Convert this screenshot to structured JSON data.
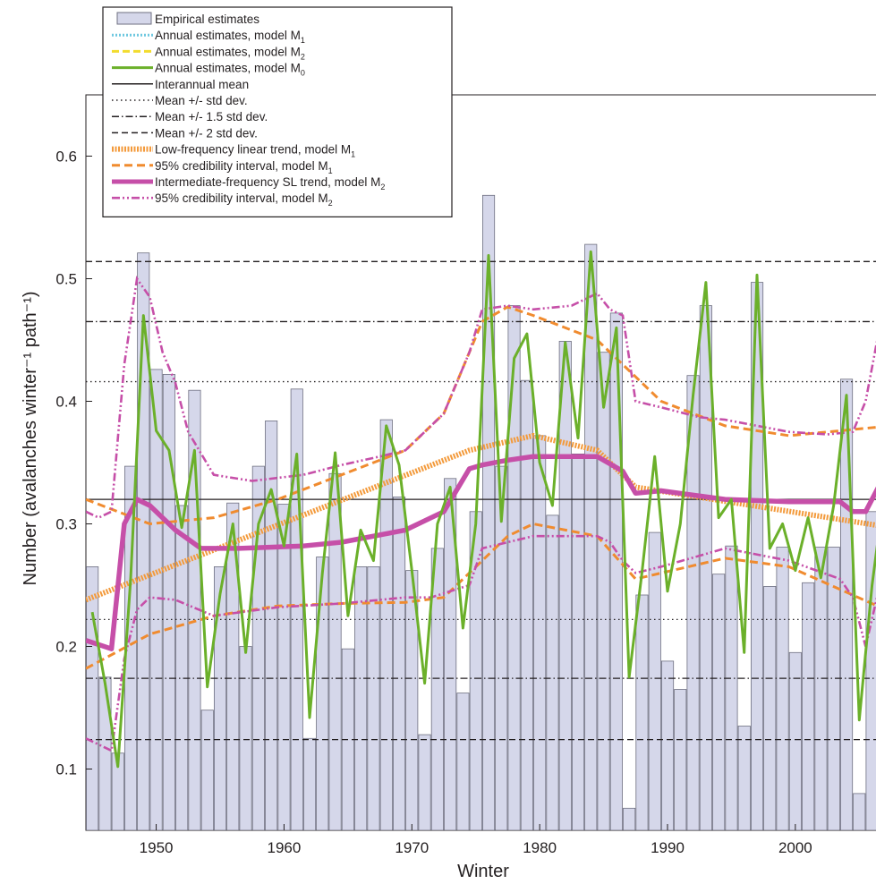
{
  "chart_data": {
    "type": "bar",
    "xlabel": "Winter",
    "ylabel": "Number (avalanches winter⁻¹ path⁻¹)",
    "xlim": [
      1945,
      2008
    ],
    "ylim": [
      0.05,
      0.65
    ],
    "xticks": [
      1950,
      1960,
      1970,
      1980,
      1990,
      2000
    ],
    "yticks": [
      0.1,
      0.2,
      0.3,
      0.4,
      0.5,
      0.6
    ],
    "ytick_labels": [
      "0.1",
      "0.2",
      "0.3",
      "0.4",
      "0.5",
      "0.6"
    ],
    "legend_position": "top-left",
    "colors": {
      "bars_fill": "#d5d7ea",
      "bars_stroke": "#6e6f80",
      "model_m1": "#6fc8e0",
      "model_m2": "#f2dc2e",
      "model_m0": "#6bb02a",
      "mean_lines": "#231f20",
      "trend_m1": "#f39a3b",
      "ci_m1": "#f08b2f",
      "trend_m2": "#c64fa8",
      "ci_m2": "#c64fa8"
    },
    "interannual_mean": 0.32,
    "std_lines": {
      "plus_minus_1": [
        0.222,
        0.416
      ],
      "plus_minus_1_5": [
        0.174,
        0.465
      ],
      "plus_minus_2": [
        0.124,
        0.514
      ]
    },
    "legend": [
      {
        "key": "empirical",
        "text": "Empirical estimates",
        "sub": ""
      },
      {
        "key": "m1_annual",
        "text": "Annual estimates, model M",
        "sub": "1"
      },
      {
        "key": "m2_annual",
        "text": "Annual estimates, model M",
        "sub": "2"
      },
      {
        "key": "m0_annual",
        "text": "Annual estimates, model M",
        "sub": "0"
      },
      {
        "key": "mean",
        "text": "Interannual mean",
        "sub": ""
      },
      {
        "key": "std1",
        "text": "Mean +/- std dev.",
        "sub": ""
      },
      {
        "key": "std15",
        "text": "Mean +/- 1.5 std dev.",
        "sub": ""
      },
      {
        "key": "std2",
        "text": "Mean +/- 2 std dev.",
        "sub": ""
      },
      {
        "key": "trend_m1",
        "text": "Low-frequency linear trend, model M",
        "sub": "1"
      },
      {
        "key": "ci_m1",
        "text": "95% credibility interval, model M",
        "sub": "1"
      },
      {
        "key": "trend_m2",
        "text": "Intermediate-frequency SL trend, model M",
        "sub": "2"
      },
      {
        "key": "ci_m2",
        "text": "95% credibility interval, model M",
        "sub": "2"
      }
    ],
    "empirical": {
      "x": [
        1945,
        1946,
        1947,
        1948,
        1949,
        1950,
        1951,
        1952,
        1953,
        1954,
        1955,
        1956,
        1957,
        1958,
        1959,
        1960,
        1961,
        1962,
        1963,
        1964,
        1965,
        1966,
        1967,
        1968,
        1969,
        1970,
        1971,
        1972,
        1973,
        1974,
        1975,
        1976,
        1977,
        1978,
        1979,
        1980,
        1981,
        1982,
        1983,
        1984,
        1985,
        1986,
        1987,
        1988,
        1989,
        1990,
        1991,
        1992,
        1993,
        1994,
        1995,
        1996,
        1997,
        1998,
        1999,
        2000,
        2001,
        2002,
        2003,
        2004,
        2005,
        2006,
        2007
      ],
      "y": [
        0.265,
        0.175,
        0.113,
        0.347,
        0.521,
        0.426,
        0.422,
        0.315,
        0.409,
        0.148,
        0.265,
        0.317,
        0.2,
        0.347,
        0.384,
        0.316,
        0.41,
        0.125,
        0.273,
        0.341,
        0.198,
        0.265,
        0.265,
        0.385,
        0.322,
        0.262,
        0.128,
        0.28,
        0.337,
        0.162,
        0.31,
        0.568,
        0.347,
        0.478,
        0.417,
        0.372,
        0.307,
        0.449,
        0.357,
        0.528,
        0.44,
        0.472,
        0.068,
        0.242,
        0.293,
        0.188,
        0.165,
        0.421,
        0.478,
        0.259,
        0.282,
        0.135,
        0.497,
        0.249,
        0.281,
        0.195,
        0.252,
        0.281,
        0.281,
        0.418,
        0.08,
        0.31,
        0.423
      ]
    },
    "annual_m0": {
      "x": [
        1945,
        1946,
        1947,
        1948,
        1949,
        1950,
        1951,
        1952,
        1953,
        1954,
        1955,
        1956,
        1957,
        1958,
        1959,
        1960,
        1961,
        1962,
        1963,
        1964,
        1965,
        1966,
        1967,
        1968,
        1969,
        1970,
        1971,
        1972,
        1973,
        1974,
        1975,
        1976,
        1977,
        1978,
        1979,
        1980,
        1981,
        1982,
        1983,
        1984,
        1985,
        1986,
        1987,
        1988,
        1989,
        1990,
        1991,
        1992,
        1993,
        1994,
        1995,
        1996,
        1997,
        1998,
        1999,
        2000,
        2001,
        2002,
        2003,
        2004,
        2005,
        2006,
        2007
      ],
      "y": [
        0.228,
        0.17,
        0.102,
        0.255,
        0.47,
        0.376,
        0.36,
        0.297,
        0.36,
        0.167,
        0.243,
        0.3,
        0.195,
        0.3,
        0.328,
        0.282,
        0.357,
        0.142,
        0.26,
        0.358,
        0.225,
        0.295,
        0.27,
        0.38,
        0.348,
        0.262,
        0.17,
        0.3,
        0.33,
        0.215,
        0.3,
        0.519,
        0.302,
        0.435,
        0.455,
        0.35,
        0.315,
        0.448,
        0.37,
        0.522,
        0.395,
        0.46,
        0.175,
        0.26,
        0.355,
        0.245,
        0.3,
        0.405,
        0.497,
        0.305,
        0.32,
        0.195,
        0.503,
        0.28,
        0.3,
        0.262,
        0.305,
        0.256,
        0.315,
        0.405,
        0.14,
        0.25,
        0.33
      ]
    },
    "trend_m1": {
      "x": [
        1945,
        2008
      ],
      "y": [
        0.238,
        0.297
      ],
      "x2": [
        1945,
        1975,
        1980,
        1985,
        1988,
        2008
      ],
      "y2": [
        0.238,
        0.36,
        0.372,
        0.36,
        0.33,
        0.297
      ]
    },
    "ci_m1_upper": {
      "x": [
        1945,
        1950,
        1955,
        1960,
        1965,
        1970,
        1973,
        1976,
        1978,
        1980,
        1985,
        1990,
        1995,
        2000,
        2008
      ],
      "y": [
        0.32,
        0.3,
        0.305,
        0.32,
        0.34,
        0.36,
        0.39,
        0.465,
        0.477,
        0.47,
        0.45,
        0.4,
        0.38,
        0.372,
        0.38
      ]
    },
    "ci_m1_lower": {
      "x": [
        1945,
        1950,
        1955,
        1960,
        1965,
        1970,
        1973,
        1976,
        1978,
        1980,
        1985,
        1988,
        1995,
        2000,
        2008
      ],
      "y": [
        0.182,
        0.21,
        0.225,
        0.233,
        0.235,
        0.236,
        0.24,
        0.27,
        0.29,
        0.3,
        0.29,
        0.255,
        0.272,
        0.265,
        0.228
      ]
    },
    "trend_m2": {
      "x": [
        1945,
        1947,
        1948,
        1949,
        1950,
        1952,
        1954,
        1957,
        1962,
        1965,
        1970,
        1973,
        1975,
        1976,
        1978,
        1980,
        1985,
        1987,
        1988,
        1990,
        1995,
        2000,
        2004,
        2005,
        2006,
        2007
      ],
      "y": [
        0.205,
        0.198,
        0.3,
        0.32,
        0.315,
        0.295,
        0.28,
        0.28,
        0.282,
        0.285,
        0.295,
        0.31,
        0.345,
        0.348,
        0.352,
        0.355,
        0.355,
        0.343,
        0.325,
        0.327,
        0.32,
        0.318,
        0.318,
        0.31,
        0.31,
        0.33
      ]
    },
    "ci_m2_upper": {
      "x": [
        1945,
        1946,
        1947,
        1948,
        1949,
        1950,
        1951,
        1952,
        1953,
        1955,
        1958,
        1962,
        1965,
        1968,
        1970,
        1973,
        1975,
        1976,
        1978,
        1980,
        1983,
        1985,
        1986,
        1987,
        1988,
        1990,
        1993,
        1995,
        2000,
        2003,
        2005,
        2006,
        2007,
        2008
      ],
      "y": [
        0.31,
        0.305,
        0.31,
        0.43,
        0.5,
        0.485,
        0.44,
        0.415,
        0.375,
        0.34,
        0.335,
        0.34,
        0.348,
        0.355,
        0.36,
        0.39,
        0.44,
        0.475,
        0.478,
        0.475,
        0.478,
        0.488,
        0.475,
        0.47,
        0.4,
        0.395,
        0.387,
        0.385,
        0.375,
        0.373,
        0.375,
        0.4,
        0.455,
        0.515
      ]
    },
    "ci_m2_lower": {
      "x": [
        1945,
        1947,
        1948,
        1949,
        1950,
        1952,
        1955,
        1960,
        1965,
        1970,
        1972,
        1975,
        1976,
        1978,
        1980,
        1985,
        1986,
        1987,
        1988,
        1990,
        1995,
        2000,
        2004,
        2005,
        2006,
        2007,
        2008
      ],
      "y": [
        0.125,
        0.115,
        0.19,
        0.23,
        0.24,
        0.238,
        0.225,
        0.232,
        0.235,
        0.24,
        0.24,
        0.25,
        0.28,
        0.285,
        0.29,
        0.29,
        0.285,
        0.27,
        0.26,
        0.265,
        0.28,
        0.27,
        0.255,
        0.24,
        0.2,
        0.245,
        0.26
      ]
    }
  }
}
